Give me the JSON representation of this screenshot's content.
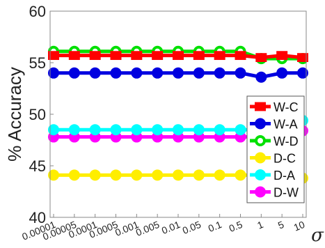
{
  "chart_data": {
    "type": "line",
    "title": "",
    "xlabel": "σ",
    "ylabel": "% Accuracy",
    "categories": [
      "0.00001",
      "0.00005",
      "0.0001",
      "0.0005",
      "0.001",
      "0.005",
      "0.01",
      "0.05",
      "0.1",
      "0.5",
      "1",
      "5",
      "10"
    ],
    "ylim": [
      40,
      60
    ],
    "yticks": [
      40,
      45,
      50,
      55,
      60
    ],
    "grid": false,
    "legend_position": "right",
    "series": [
      {
        "name": "W-C",
        "color": "#ff0000",
        "marker": "square",
        "values": [
          55.7,
          55.7,
          55.7,
          55.7,
          55.7,
          55.7,
          55.7,
          55.7,
          55.7,
          55.7,
          55.5,
          55.7,
          55.5
        ]
      },
      {
        "name": "W-A",
        "color": "#0000e0",
        "marker": "circle",
        "values": [
          54.0,
          54.0,
          54.0,
          54.0,
          54.0,
          54.0,
          54.0,
          54.0,
          54.0,
          54.0,
          53.6,
          54.0,
          54.0
        ]
      },
      {
        "name": "W-D",
        "color": "#00e000",
        "marker": "circle-open",
        "values": [
          56.1,
          56.1,
          56.1,
          56.1,
          56.1,
          56.1,
          56.1,
          56.1,
          56.1,
          56.1,
          55.4,
          55.4,
          55.4
        ]
      },
      {
        "name": "D-C",
        "color": "#ffee00",
        "marker": "circle",
        "values": [
          44.1,
          44.1,
          44.1,
          44.1,
          44.1,
          44.1,
          44.1,
          44.1,
          44.1,
          44.1,
          44.1,
          44.1,
          43.8
        ]
      },
      {
        "name": "D-A",
        "color": "#00ffff",
        "marker": "circle",
        "values": [
          48.5,
          48.5,
          48.5,
          48.5,
          48.5,
          48.5,
          48.5,
          48.5,
          48.5,
          48.5,
          48.5,
          48.5,
          49.4
        ]
      },
      {
        "name": "D-W",
        "color": "#ff00ff",
        "marker": "circle",
        "values": [
          47.8,
          47.8,
          47.8,
          47.8,
          47.8,
          47.8,
          47.8,
          47.8,
          47.8,
          47.8,
          47.8,
          47.8,
          48.4
        ]
      }
    ]
  }
}
